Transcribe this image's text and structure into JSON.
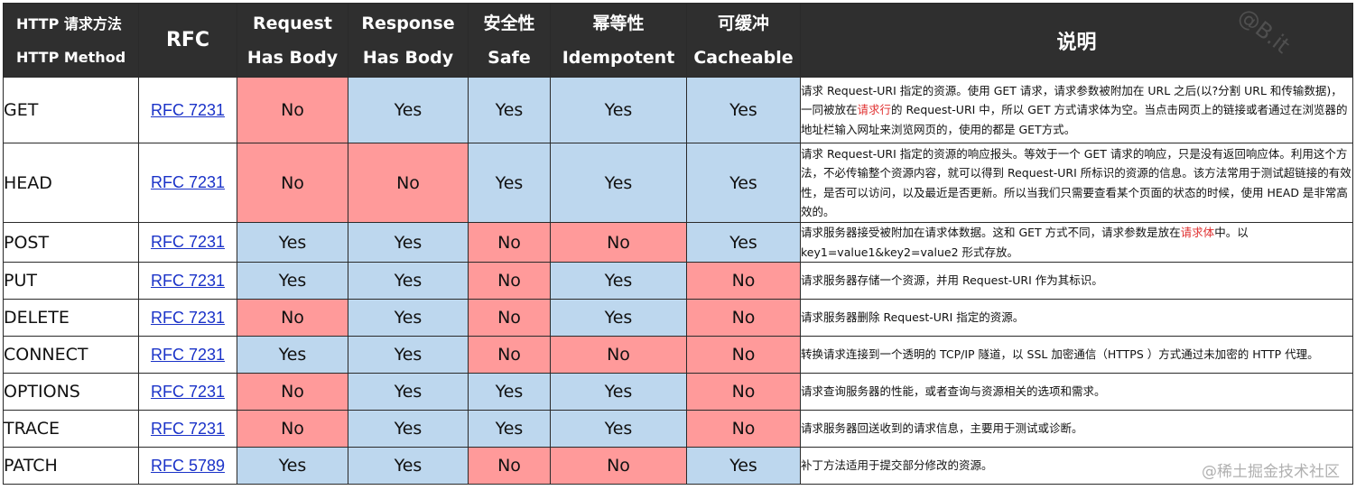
{
  "table": {
    "headers": {
      "method_cn": "HTTP 请求方法",
      "method_en": "HTTP Method",
      "rfc": "RFC",
      "req_body_1": "Request",
      "req_body_2": "Has Body",
      "resp_body_1": "Response",
      "resp_body_2": "Has Body",
      "safe_cn": "安全性",
      "safe_en": "Safe",
      "idem_cn": "幂等性",
      "idem_en": "Idempotent",
      "cache_cn": "可缓冲",
      "cache_en": "Cacheable",
      "desc": "说明"
    },
    "rows": [
      {
        "method": "GET",
        "rfc": "RFC 7231",
        "request_body": "No",
        "response_body": "Yes",
        "safe": "Yes",
        "idempotent": "Yes",
        "cacheable": "Yes",
        "desc_parts": [
          "请求 Request-URI 指定的资源。使用 GET 请求，请求参数被附加在 URL 之后(以?分割 URL 和传输数据)，一同被放在",
          "请求行",
          "的 Request-URI 中，所以 GET 方式请求体为空。当点击网页上的链接或者通过在浏览器的地址栏输入网址来浏览网页的，使用的都是 GET方式。"
        ]
      },
      {
        "method": "HEAD",
        "rfc": "RFC 7231",
        "request_body": "No",
        "response_body": "No",
        "safe": "Yes",
        "idempotent": "Yes",
        "cacheable": "Yes",
        "desc_parts": [
          "请求 Request-URI 指定的资源的响应报头。等效于一个 GET 请求的响应，只是没有返回响应体。利用这个方法，不必传输整个资源内容，就可以得到 Request-URI 所标识的资源的信息。该方法常用于测试超链接的有效性，是否可以访问，以及最近是否更新。所以当我们只需要查看某个页面的状态的时候，使用 HEAD 是非常高效的。",
          "",
          ""
        ]
      },
      {
        "method": "POST",
        "rfc": "RFC 7231",
        "request_body": "Yes",
        "response_body": "Yes",
        "safe": "No",
        "idempotent": "No",
        "cacheable": "Yes",
        "desc_parts": [
          "请求服务器接受被附加在请求体数据。这和 GET 方式不同，请求参数是放在",
          "请求体",
          "中。以 key1=value1&key2=value2 形式存放。"
        ]
      },
      {
        "method": "PUT",
        "rfc": "RFC 7231",
        "request_body": "Yes",
        "response_body": "Yes",
        "safe": "No",
        "idempotent": "Yes",
        "cacheable": "No",
        "desc_parts": [
          "请求服务器存储一个资源，并用 Request-URI 作为其标识。",
          "",
          ""
        ]
      },
      {
        "method": "DELETE",
        "rfc": "RFC 7231",
        "request_body": "No",
        "response_body": "Yes",
        "safe": "No",
        "idempotent": "Yes",
        "cacheable": "No",
        "desc_parts": [
          "请求服务器删除 Request-URI 指定的资源。",
          "",
          ""
        ]
      },
      {
        "method": "CONNECT",
        "rfc": "RFC 7231",
        "request_body": "Yes",
        "response_body": "Yes",
        "safe": "No",
        "idempotent": "No",
        "cacheable": "No",
        "desc_parts": [
          "转换请求连接到一个透明的 TCP/IP 隧道，以 SSL 加密通信（HTTPS ）方式通过未加密的 HTTP 代理。",
          "",
          ""
        ]
      },
      {
        "method": "OPTIONS",
        "rfc": "RFC 7231",
        "request_body": "No",
        "response_body": "Yes",
        "safe": "Yes",
        "idempotent": "Yes",
        "cacheable": "No",
        "desc_parts": [
          "请求查询服务器的性能，或者查询与资源相关的选项和需求。",
          "",
          ""
        ]
      },
      {
        "method": "TRACE",
        "rfc": "RFC 7231",
        "request_body": "No",
        "response_body": "Yes",
        "safe": "Yes",
        "idempotent": "Yes",
        "cacheable": "No",
        "desc_parts": [
          "请求服务器回送收到的请求信息，主要用于测试或诊断。",
          "",
          ""
        ]
      },
      {
        "method": "PATCH",
        "rfc": "RFC 5789",
        "request_body": "Yes",
        "response_body": "Yes",
        "safe": "No",
        "idempotent": "No",
        "cacheable": "Yes",
        "desc_parts": [
          "补丁方法适用于提交部分修改的资源。",
          "",
          ""
        ]
      }
    ]
  },
  "colors": {
    "yes_fill": "#bdd7ee",
    "no_fill": "#ff9a9a",
    "header_fill": "#2f2f2f",
    "highlight_text": "#e03030",
    "link": "#1a32c8"
  },
  "watermark": {
    "logo": "@B.it",
    "site": "@稀土掘金技术社区"
  }
}
